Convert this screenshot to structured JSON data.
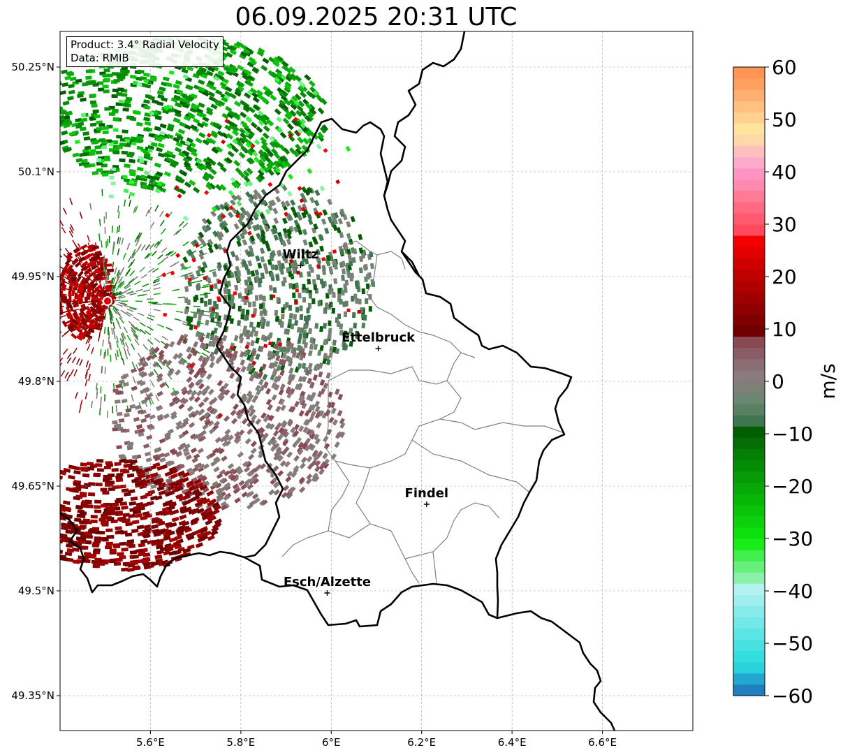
{
  "title": "06.09.2025 20:31 UTC",
  "info": {
    "product": "Product: 3.4° Radial Velocity",
    "source": "Data: RMIB"
  },
  "map": {
    "lon_ticks": [
      {
        "value": 5.6,
        "label": "5.6°E"
      },
      {
        "value": 5.8,
        "label": "5.8°E"
      },
      {
        "value": 6.0,
        "label": "6°E"
      },
      {
        "value": 6.2,
        "label": "6.2°E"
      },
      {
        "value": 6.4,
        "label": "6.4°E"
      },
      {
        "value": 6.6,
        "label": "6.6°E"
      }
    ],
    "lat_ticks": [
      {
        "value": 50.25,
        "label": "50.25°N"
      },
      {
        "value": 50.1,
        "label": "50.1°N"
      },
      {
        "value": 49.95,
        "label": "49.95°N"
      },
      {
        "value": 49.8,
        "label": "49.8°N"
      },
      {
        "value": 49.65,
        "label": "49.65°N"
      },
      {
        "value": 49.5,
        "label": "49.5°N"
      },
      {
        "value": 49.35,
        "label": "49.35°N"
      }
    ],
    "cities": [
      {
        "name": "Wiltz",
        "lon": 5.932,
        "lat": 49.966
      },
      {
        "name": "Ettelbruck",
        "lon": 6.104,
        "lat": 49.847
      },
      {
        "name": "Findel",
        "lon": 6.211,
        "lat": 49.624
      },
      {
        "name": "Esch/Alzette",
        "lon": 5.991,
        "lat": 49.497
      }
    ],
    "radar_site": {
      "lon": 5.505,
      "lat": 49.915
    }
  },
  "colorbar": {
    "unit": "m/s",
    "min": -60,
    "max": 60,
    "ticks": [
      {
        "value": 60,
        "label": "60"
      },
      {
        "value": 50,
        "label": "50"
      },
      {
        "value": 40,
        "label": "40"
      },
      {
        "value": 30,
        "label": "30"
      },
      {
        "value": 20,
        "label": "20"
      },
      {
        "value": 10,
        "label": "10"
      },
      {
        "value": 0,
        "label": "0"
      },
      {
        "value": -10,
        "label": "−10"
      },
      {
        "value": -20,
        "label": "−20"
      },
      {
        "value": -30,
        "label": "−30"
      },
      {
        "value": -40,
        "label": "−40"
      },
      {
        "value": -50,
        "label": "−50"
      },
      {
        "value": -60,
        "label": "−60"
      }
    ],
    "colors": [
      "#1f7fc0",
      "#23a6cf",
      "#29d2dc",
      "#33dede",
      "#48e1e1",
      "#5be5e5",
      "#72e8e8",
      "#88ebeb",
      "#9fefef",
      "#b4f2f2",
      "#8af2a8",
      "#66f07a",
      "#40ee4c",
      "#18ec18",
      "#0ee00e",
      "#0cd20c",
      "#0ac40a",
      "#08b608",
      "#07a807",
      "#069a06",
      "#058c05",
      "#057e05",
      "#046e04",
      "#035e03",
      "#3f7550",
      "#5a8062",
      "#6c8771",
      "#7e8078",
      "#8a7b7c",
      "#8a6e74",
      "#8a5d66",
      "#8a4a52",
      "#6e0000",
      "#800000",
      "#900000",
      "#a00000",
      "#b00000",
      "#c00000",
      "#d00000",
      "#e20000",
      "#f50000",
      "#ff4a5e",
      "#ff5a70",
      "#ff6a82",
      "#ff7a94",
      "#ff8ab0",
      "#ff94c4",
      "#ffaacc",
      "#ffbfbf",
      "#ffd7a8",
      "#ffe49c",
      "#ffd090",
      "#ffc080",
      "#ffb070",
      "#ffa060",
      "#ff9455"
    ]
  }
}
